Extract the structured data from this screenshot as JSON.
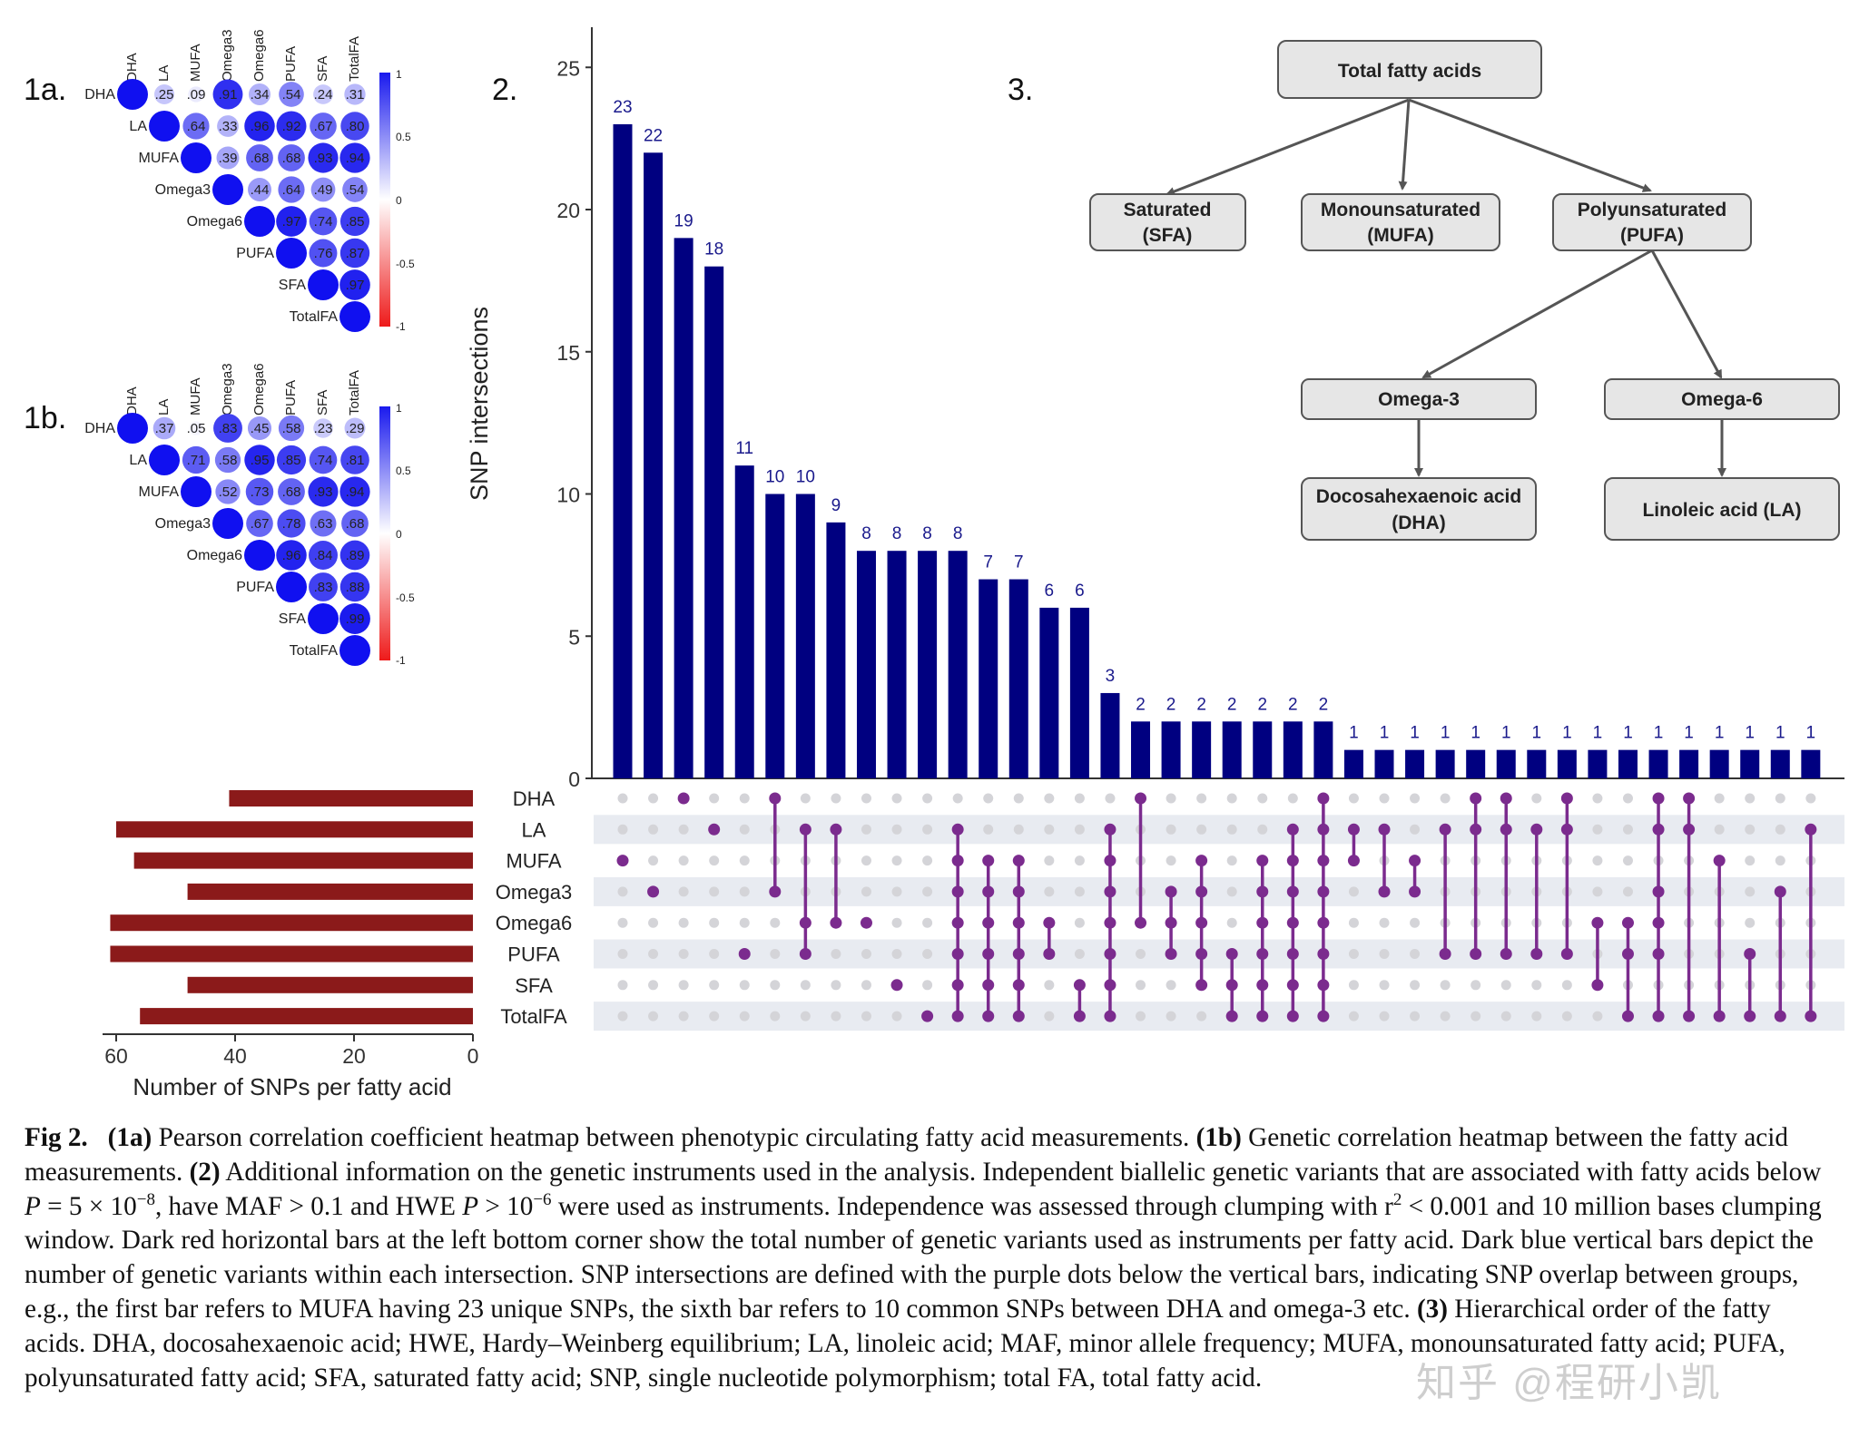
{
  "panels": {
    "p1a": "1a.",
    "p1b": "1b.",
    "p2": "2.",
    "p3": "3."
  },
  "heatmap": {
    "labels": [
      "DHA",
      "LA",
      "MUFA",
      "Omega3",
      "Omega6",
      "PUFA",
      "SFA",
      "TotalFA"
    ],
    "colorbar_ticks": [
      "1",
      "0.5",
      "0",
      "-0.5",
      "-1"
    ],
    "colors": {
      "positive": "#1a1aee",
      "negative": "#ee1a1a",
      "mid": "#ffffff"
    },
    "h1a": {
      "rows": [
        [
          ".25",
          ".09",
          ".91",
          ".34",
          ".54",
          ".24",
          ".31"
        ],
        [
          ".64",
          ".33",
          ".96",
          ".92",
          ".67",
          ".80"
        ],
        [
          ".39",
          ".68",
          ".68",
          ".93",
          ".94"
        ],
        [
          ".44",
          ".64",
          ".49",
          ".54"
        ],
        [
          ".97",
          ".74",
          ".85"
        ],
        [
          ".76",
          ".87"
        ],
        [
          ".97"
        ],
        []
      ]
    },
    "h1b": {
      "rows": [
        [
          ".37",
          ".05",
          ".83",
          ".45",
          ".58",
          ".23",
          ".29"
        ],
        [
          ".71",
          ".58",
          ".95",
          ".85",
          ".74",
          ".81"
        ],
        [
          ".52",
          ".73",
          ".68",
          ".93",
          ".94"
        ],
        [
          ".67",
          ".78",
          ".63",
          ".68"
        ],
        [
          ".96",
          ".84",
          ".89"
        ],
        [
          ".83",
          ".88"
        ],
        [
          ".99"
        ],
        []
      ]
    }
  },
  "chart_data": [
    {
      "type": "bar",
      "orientation": "vertical",
      "ylabel": "SNP intersections",
      "ylim": [
        0,
        26
      ],
      "yticks": [
        0,
        5,
        10,
        15,
        20,
        25
      ],
      "color": "#000080",
      "values": [
        23,
        22,
        19,
        18,
        11,
        10,
        10,
        9,
        8,
        8,
        8,
        8,
        7,
        7,
        6,
        6,
        3,
        2,
        2,
        2,
        2,
        2,
        2,
        2,
        1,
        1,
        1,
        1,
        1,
        1,
        1,
        1,
        1,
        1,
        1,
        1,
        1,
        1,
        1,
        1
      ],
      "sets": [
        "DHA",
        "LA",
        "MUFA",
        "Omega3",
        "Omega6",
        "PUFA",
        "SFA",
        "TotalFA"
      ],
      "membership": [
        [
          2
        ],
        [
          3
        ],
        [
          0
        ],
        [
          1
        ],
        [
          5
        ],
        [
          0,
          3
        ],
        [
          1,
          4,
          5
        ],
        [
          1,
          4
        ],
        [
          4
        ],
        [
          6
        ],
        [
          7
        ],
        [
          1,
          2,
          3,
          4,
          5,
          6,
          7
        ],
        [
          2,
          3,
          4,
          5,
          6,
          7
        ],
        [
          2,
          3,
          4,
          5,
          6,
          7
        ],
        [
          4,
          5
        ],
        [
          6,
          7
        ],
        [
          1,
          2,
          3,
          4,
          5,
          6,
          7
        ],
        [
          0,
          4
        ],
        [
          3,
          4,
          5
        ],
        [
          2,
          3,
          4,
          5,
          6
        ],
        [
          5,
          6,
          7
        ],
        [
          2,
          3,
          4,
          5,
          6,
          7
        ],
        [
          1,
          2,
          3,
          4,
          5,
          6,
          7
        ],
        [
          0,
          1,
          2,
          3,
          4,
          5,
          6,
          7
        ],
        [
          1,
          2
        ],
        [
          1,
          3
        ],
        [
          2,
          3
        ],
        [
          1,
          5
        ],
        [
          0,
          1,
          5
        ],
        [
          0,
          1,
          5
        ],
        [
          1,
          5
        ],
        [
          0,
          1,
          5
        ],
        [
          4,
          6
        ],
        [
          4,
          5,
          7
        ],
        [
          0,
          1,
          3,
          4,
          5,
          7
        ],
        [
          0,
          1,
          7
        ],
        [
          2,
          7
        ],
        [
          5,
          7
        ],
        [
          3,
          7
        ],
        [
          1,
          7
        ]
      ],
      "dot_color": "#7b2b8e",
      "stripe_color": "#e8ebf1"
    },
    {
      "type": "bar",
      "orientation": "horizontal",
      "xlabel": "Number of SNPs per fatty acid",
      "categories": [
        "DHA",
        "LA",
        "MUFA",
        "Omega3",
        "Omega6",
        "PUFA",
        "SFA",
        "TotalFA"
      ],
      "values": [
        41,
        60,
        57,
        48,
        61,
        61,
        48,
        56
      ],
      "xlim": [
        62,
        0
      ],
      "xticks": [
        60,
        40,
        20,
        0
      ],
      "color": "#8b1a1a"
    }
  ],
  "hierarchy": {
    "root": "Total fatty acids",
    "sfa": [
      "Saturated",
      "(SFA)"
    ],
    "mufa": [
      "Monounsaturated",
      "(MUFA)"
    ],
    "pufa": [
      "Polyunsaturated",
      "(PUFA)"
    ],
    "omega3": "Omega-3",
    "omega6": "Omega-6",
    "dha": [
      "Docosahexaenoic acid",
      "(DHA)"
    ],
    "la": "Linoleic acid (LA)"
  },
  "caption": {
    "fig_label": "Fig 2.",
    "p1a_label": "(1a)",
    "p1a_text": "Pearson correlation coefficient heatmap between phenotypic circulating fatty acid measurements.",
    "p1b_label": "(1b)",
    "p1b_text": "Genetic correlation heatmap between the fatty acid measurements.",
    "p2_label": "(2)",
    "p2_text_a": "Additional information on the genetic instruments used in the analysis. Independent biallelic genetic variants that are associated with fatty acids below",
    "p_var": "P",
    "p_eq": "= 5 × 10",
    "p_exp": "−8",
    "p2_text_b": ", have MAF > 0.1 and HWE",
    "hwe_var": "P",
    "hwe_gt": "> 10",
    "hwe_exp": "−6",
    "p2_text_c": "were used as instruments. Independence was assessed through clumping with r",
    "r_exp": "2",
    "p2_text_d": "< 0.001 and 10 million bases clumping window. Dark red horizontal bars at the left bottom corner show the total number of genetic variants used as instruments per fatty acid. Dark blue vertical bars depict the number of genetic variants within each intersection. SNP intersections are defined with the purple dots below the vertical bars, indicating SNP overlap between groups, e.g., the first bar refers to MUFA having 23 unique SNPs, the sixth bar refers to 10 common SNPs between DHA and omega-3 etc.",
    "p3_label": "(3)",
    "p3_text": "Hierarchical order of the fatty acids. DHA, docosahexaenoic acid; HWE, Hardy–Weinberg equilibrium; LA, linoleic acid; MAF, minor allele frequency; MUFA, monounsaturated fatty acid; PUFA, polyunsaturated fatty acid; SFA, saturated fatty acid; SNP, single nucleotide polymorphism; total FA, total fatty acid."
  },
  "watermark": "知乎 @程研小凯"
}
